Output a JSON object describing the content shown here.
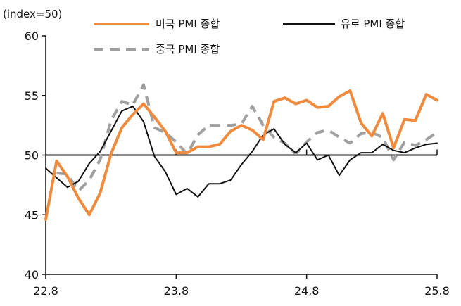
{
  "chart_data": {
    "type": "line",
    "unit_label": "(index=50)",
    "ylim": [
      40,
      60
    ],
    "yticks": [
      40,
      45,
      50,
      55,
      60
    ],
    "reference_line": 50,
    "grid": false,
    "legend_position": "top",
    "x": [
      "22.8",
      "22.9",
      "22.10",
      "22.11",
      "22.12",
      "23.1",
      "23.2",
      "23.3",
      "23.4",
      "23.5",
      "23.6",
      "23.7",
      "23.8",
      "23.9",
      "23.10",
      "23.11",
      "23.12",
      "24.1",
      "24.2",
      "24.3",
      "24.4",
      "24.5",
      "24.6",
      "24.7",
      "24.8",
      "24.9",
      "24.10",
      "24.11",
      "24.12",
      "25.1",
      "25.2",
      "25.3",
      "25.4",
      "25.5",
      "25.6",
      "25.7",
      "25.8"
    ],
    "xtick_labels": [
      "22.8",
      "23.8",
      "24.8",
      "25.8"
    ],
    "series": [
      {
        "name": "미국 PMI 종합",
        "color": "#F08A3C",
        "style": "solid",
        "values": [
          44.6,
          49.5,
          48.2,
          46.4,
          45.0,
          46.8,
          50.1,
          52.3,
          53.4,
          54.3,
          53.2,
          52.0,
          50.2,
          50.2,
          50.7,
          50.7,
          50.9,
          52.0,
          52.5,
          52.1,
          51.3,
          54.5,
          54.8,
          54.3,
          54.6,
          54.0,
          54.1,
          54.9,
          55.4,
          52.7,
          51.6,
          53.5,
          50.6,
          53.0,
          52.9,
          55.1,
          54.6
        ]
      },
      {
        "name": "유로 PMI 종합",
        "color": "#111111",
        "style": "solid",
        "values": [
          48.9,
          48.1,
          47.3,
          47.8,
          49.3,
          50.3,
          52.0,
          53.7,
          54.1,
          52.8,
          49.9,
          48.6,
          46.7,
          47.2,
          46.5,
          47.6,
          47.6,
          47.9,
          49.2,
          50.3,
          51.7,
          52.2,
          50.9,
          50.2,
          51.0,
          49.6,
          50.0,
          48.3,
          49.6,
          50.2,
          50.2,
          50.9,
          50.4,
          50.2,
          50.6,
          50.9,
          51.0
        ]
      },
      {
        "name": "중국 PMI 종합",
        "color": "#A0A0A0",
        "style": "dashed",
        "values": [
          null,
          48.5,
          48.4,
          47.0,
          47.9,
          49.6,
          52.9,
          54.5,
          54.2,
          55.9,
          52.3,
          51.9,
          51.1,
          50.1,
          51.7,
          52.5,
          52.5,
          52.5,
          52.6,
          54.1,
          52.5,
          51.5,
          51.0,
          50.1,
          51.1,
          51.9,
          52.1,
          51.5,
          51.0,
          51.8,
          51.9,
          51.5,
          49.6,
          51.1,
          50.8,
          51.3,
          51.9
        ]
      }
    ]
  }
}
